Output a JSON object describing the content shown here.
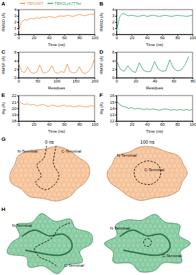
{
  "chart_data": [
    {
      "type": "line",
      "title": "A",
      "x_label": "Time (ns)",
      "y_label": "RMSD (Å)",
      "legend": "top-left",
      "x": [
        0,
        4,
        8,
        12,
        16,
        20,
        24,
        28,
        32,
        36,
        40,
        44,
        48,
        52,
        56,
        60,
        64,
        68,
        72,
        76,
        80,
        84,
        88,
        92,
        96,
        100
      ],
      "series": [
        {
          "name": "TBX2WT",
          "color": "#f0883e",
          "values": [
            0.5,
            2.0,
            2.4,
            2.3,
            2.6,
            2.5,
            2.7,
            2.6,
            2.8,
            2.7,
            2.9,
            2.8,
            2.7,
            2.9,
            3.0,
            2.9,
            3.1,
            3.0,
            2.9,
            3.1,
            3.2,
            3.1,
            3.0,
            3.2,
            3.3,
            3.2
          ]
        }
      ],
      "xlim": [
        0,
        100
      ],
      "xticks": [
        0,
        20,
        40,
        60,
        80,
        100
      ],
      "ylim": [
        0,
        4
      ],
      "yticks": [
        0,
        1,
        2,
        3,
        4
      ]
    },
    {
      "type": "line",
      "title": "B",
      "x_label": "Time (ns)",
      "y_label": "RMSD (Å)",
      "x": [
        0,
        4,
        8,
        12,
        16,
        20,
        24,
        28,
        32,
        36,
        40,
        44,
        48,
        52,
        56,
        60,
        64,
        68,
        72,
        76,
        80,
        84,
        88,
        92,
        96,
        100
      ],
      "series": [
        {
          "name": "TBX2Lys77Ter",
          "color": "#2e9e5b",
          "values": [
            0.5,
            2.8,
            3.4,
            3.2,
            3.0,
            3.1,
            3.0,
            2.9,
            3.0,
            3.1,
            2.9,
            3.0,
            3.1,
            3.0,
            2.9,
            3.0,
            3.1,
            3.0,
            2.9,
            3.0,
            3.1,
            3.0,
            3.0,
            2.9,
            3.0,
            3.1
          ]
        }
      ],
      "xlim": [
        0,
        100
      ],
      "xticks": [
        0,
        20,
        40,
        60,
        80,
        100
      ],
      "ylim": [
        0,
        4
      ],
      "yticks": [
        0,
        1,
        2,
        3,
        4
      ]
    },
    {
      "type": "line",
      "title": "C",
      "x_label": "Residues",
      "y_label": "RMSF (Å)",
      "x": [
        0,
        8,
        16,
        24,
        32,
        40,
        48,
        56,
        64,
        72,
        80,
        88,
        96,
        104,
        112,
        120,
        128,
        136,
        144,
        152,
        160,
        168,
        176,
        184,
        192,
        200
      ],
      "series": [
        {
          "name": "TBX2WT",
          "color": "#f0883e",
          "values": [
            3.5,
            1.5,
            1.2,
            2.5,
            1.3,
            1.0,
            1.4,
            3.0,
            1.2,
            1.1,
            1.6,
            2.8,
            1.3,
            1.0,
            1.5,
            1.2,
            3.2,
            1.4,
            1.1,
            1.3,
            2.6,
            1.2,
            1.0,
            1.5,
            2.4,
            4.5
          ]
        }
      ],
      "xlim": [
        0,
        200
      ],
      "xticks": [
        0,
        50,
        100,
        150,
        200
      ],
      "ylim": [
        0,
        6
      ],
      "yticks": [
        0,
        2,
        4,
        6
      ]
    },
    {
      "type": "line",
      "title": "D",
      "x_label": "Residues",
      "y_label": "RMSF (Å)",
      "x": [
        0,
        4,
        8,
        12,
        16,
        20,
        24,
        28,
        32,
        36,
        40,
        44,
        48,
        52,
        56,
        60,
        64,
        68,
        72,
        76
      ],
      "series": [
        {
          "name": "TBX2Lys77Ter",
          "color": "#2e9e5b",
          "values": [
            4.0,
            2.0,
            1.5,
            2.8,
            1.6,
            1.2,
            3.5,
            1.8,
            1.4,
            1.5,
            3.8,
            2.0,
            1.5,
            1.7,
            4.2,
            2.2,
            1.6,
            1.8,
            3.0,
            5.0
          ]
        }
      ],
      "xlim": [
        0,
        80
      ],
      "xticks": [
        0,
        20,
        40,
        60,
        80
      ],
      "ylim": [
        0,
        6
      ],
      "yticks": [
        0,
        2,
        4,
        6
      ]
    },
    {
      "type": "line",
      "title": "E",
      "x_label": "Time (ns)",
      "y_label": "Rg (Å)",
      "x": [
        0,
        4,
        8,
        12,
        16,
        20,
        24,
        28,
        32,
        36,
        40,
        44,
        48,
        52,
        56,
        60,
        64,
        68,
        72,
        76,
        80,
        84,
        88,
        92,
        96,
        100
      ],
      "series": [
        {
          "name": "TBX2WT",
          "color": "#f0883e",
          "values": [
            21.0,
            20.8,
            20.6,
            20.7,
            20.5,
            20.6,
            20.4,
            20.5,
            20.6,
            20.4,
            20.3,
            20.5,
            20.4,
            20.3,
            20.4,
            20.5,
            20.3,
            20.4,
            20.2,
            20.3,
            20.4,
            20.3,
            20.2,
            20.3,
            20.4,
            20.3
          ]
        }
      ],
      "xlim": [
        0,
        100
      ],
      "xticks": [
        0,
        20,
        40,
        60,
        80,
        100
      ],
      "ylim": [
        18,
        22
      ],
      "yticks": [
        18,
        19,
        20,
        21,
        22
      ]
    },
    {
      "type": "line",
      "title": "F",
      "x_label": "Time (ns)",
      "y_label": "Rg (Å)",
      "x": [
        0,
        4,
        8,
        12,
        16,
        20,
        24,
        28,
        32,
        36,
        40,
        44,
        48,
        52,
        56,
        60,
        64,
        68,
        72,
        76,
        80,
        84,
        88,
        92,
        96,
        100
      ],
      "series": [
        {
          "name": "TBX2Lys77Ter",
          "color": "#2e9e5b",
          "values": [
            15.2,
            14.6,
            14.3,
            14.2,
            14.0,
            14.1,
            13.9,
            14.0,
            13.9,
            13.8,
            13.9,
            13.8,
            13.9,
            13.8,
            13.7,
            13.8,
            13.9,
            13.8,
            13.7,
            13.8,
            13.7,
            13.8,
            13.7,
            13.8,
            13.7,
            13.8
          ]
        }
      ],
      "xlim": [
        0,
        100
      ],
      "xticks": [
        0,
        20,
        40,
        60,
        80,
        100
      ],
      "ylim": [
        12,
        16
      ],
      "yticks": [
        12,
        13,
        14,
        15,
        16
      ]
    }
  ],
  "structures": [
    {
      "label": "G",
      "color": "#f4a35f",
      "frames": [
        {
          "time": "0 ns",
          "n_label": "N-Terminal",
          "c_label": "C-Terminal"
        },
        {
          "time": "100 ns",
          "n_label": "N-Terminal",
          "c_label": "C-Terminal"
        }
      ]
    },
    {
      "label": "H",
      "color": "#3fae6a",
      "frames": [
        {
          "n_label": "N-Terminal",
          "c_label": "C-Terminal"
        },
        {
          "n_label": "N-Terminal",
          "c_label": "C-Terminal"
        }
      ]
    }
  ]
}
